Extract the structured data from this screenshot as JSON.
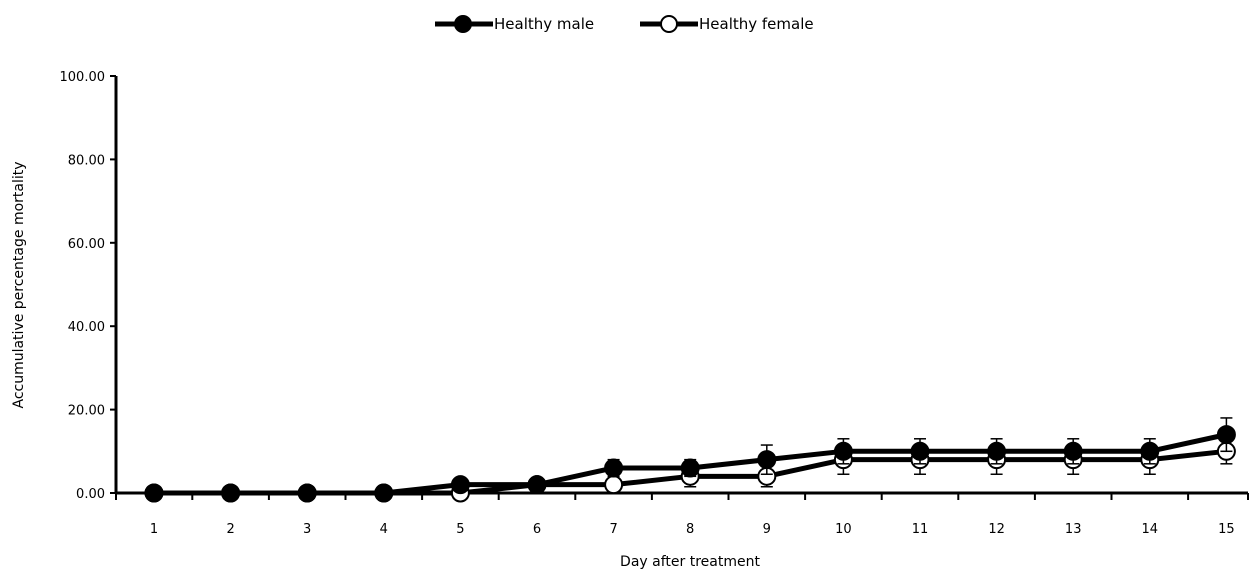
{
  "chart_data": {
    "type": "line",
    "xlabel": "Day after treatment",
    "ylabel": "Accumulative percentage mortality",
    "x": [
      1,
      2,
      3,
      4,
      5,
      6,
      7,
      8,
      9,
      10,
      11,
      12,
      13,
      14,
      15
    ],
    "x_tick_labels": [
      "1",
      "2",
      "3",
      "4",
      "5",
      "6",
      "7",
      "8",
      "9",
      "10",
      "11",
      "12",
      "13",
      "14",
      "15"
    ],
    "ylim": [
      0,
      100
    ],
    "y_tick_labels": [
      "0.00",
      "20.00",
      "40.00",
      "60.00",
      "80.00",
      "100.00"
    ],
    "y_ticks": [
      0,
      20,
      40,
      60,
      80,
      100
    ],
    "legend_position": "top-center",
    "grid": false,
    "series": [
      {
        "name": "Healthy male",
        "marker": "filled-circle",
        "color": "#000000",
        "values": [
          0,
          0,
          0,
          0,
          2,
          2,
          6,
          6,
          8,
          10,
          10,
          10,
          10,
          10,
          14
        ],
        "error": [
          0,
          0,
          0,
          0,
          0,
          0,
          2,
          2,
          3.5,
          3,
          3,
          3,
          3,
          3,
          4
        ]
      },
      {
        "name": "Healthy female",
        "marker": "open-circle",
        "color": "#000000",
        "values": [
          0,
          0,
          0,
          0,
          0,
          2,
          2,
          4,
          4,
          8,
          8,
          8,
          8,
          8,
          10
        ],
        "error": [
          0,
          0,
          0,
          0,
          0,
          0,
          0,
          2.5,
          2.5,
          3.5,
          3.5,
          3.5,
          3.5,
          3.5,
          3
        ]
      }
    ]
  }
}
